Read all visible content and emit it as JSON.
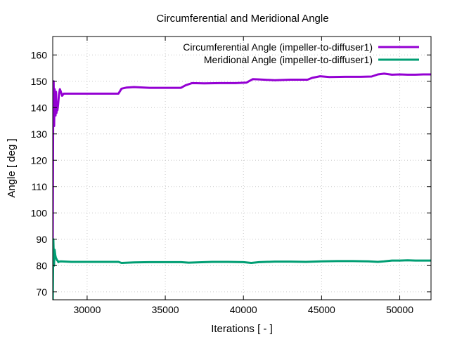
{
  "chart_data": {
    "type": "line",
    "title": "Circumferential and Meridional Angle",
    "xlabel": "Iterations [ - ]",
    "ylabel": "Angle [ deg ]",
    "xlim": [
      27800,
      52000
    ],
    "ylim": [
      67,
      167
    ],
    "xticks": [
      30000,
      35000,
      40000,
      45000,
      50000
    ],
    "yticks": [
      70,
      80,
      90,
      100,
      110,
      120,
      130,
      140,
      150,
      160
    ],
    "grid": true,
    "legend_position": "top-right",
    "series": [
      {
        "name": "Circumferential Angle (impeller-to-diffuser1)",
        "color": "#9400d3",
        "points": [
          [
            27800,
            90
          ],
          [
            27830,
            140
          ],
          [
            27860,
            150
          ],
          [
            27890,
            133
          ],
          [
            27920,
            147
          ],
          [
            27950,
            142
          ],
          [
            27980,
            137
          ],
          [
            28010,
            146
          ],
          [
            28040,
            138
          ],
          [
            28070,
            140
          ],
          [
            28100,
            139
          ],
          [
            28140,
            141
          ],
          [
            28200,
            145
          ],
          [
            28260,
            147
          ],
          [
            28320,
            146
          ],
          [
            28400,
            144.5
          ],
          [
            28500,
            145.3
          ],
          [
            28700,
            145.3
          ],
          [
            29000,
            145.3
          ],
          [
            30000,
            145.3
          ],
          [
            31000,
            145.3
          ],
          [
            32000,
            145.3
          ],
          [
            32200,
            147.2
          ],
          [
            32500,
            147.6
          ],
          [
            33000,
            147.8
          ],
          [
            34000,
            147.5
          ],
          [
            35000,
            147.5
          ],
          [
            36000,
            147.5
          ],
          [
            36300,
            148.5
          ],
          [
            36700,
            149.3
          ],
          [
            37500,
            149.2
          ],
          [
            38500,
            149.3
          ],
          [
            39500,
            149.3
          ],
          [
            40200,
            149.5
          ],
          [
            40600,
            150.8
          ],
          [
            41000,
            150.7
          ],
          [
            42000,
            150.4
          ],
          [
            43000,
            150.6
          ],
          [
            44100,
            150.6
          ],
          [
            44400,
            151.3
          ],
          [
            44900,
            151.9
          ],
          [
            45500,
            151.6
          ],
          [
            46500,
            151.7
          ],
          [
            47500,
            151.7
          ],
          [
            48200,
            151.8
          ],
          [
            48600,
            152.6
          ],
          [
            49000,
            152.9
          ],
          [
            49500,
            152.5
          ],
          [
            50000,
            152.6
          ],
          [
            50500,
            152.5
          ],
          [
            51000,
            152.5
          ],
          [
            51500,
            152.6
          ],
          [
            52000,
            152.6
          ]
        ]
      },
      {
        "name": "Meridional Angle (impeller-to-diffuser1)",
        "color": "#009e73",
        "points": [
          [
            27800,
            65
          ],
          [
            27840,
            90
          ],
          [
            27880,
            80
          ],
          [
            27920,
            86
          ],
          [
            27960,
            84
          ],
          [
            28000,
            83
          ],
          [
            28040,
            82.5
          ],
          [
            28080,
            82
          ],
          [
            28120,
            81.8
          ],
          [
            28160,
            81.3
          ],
          [
            28200,
            81.5
          ],
          [
            28300,
            81.6
          ],
          [
            29000,
            81.4
          ],
          [
            30000,
            81.4
          ],
          [
            31000,
            81.4
          ],
          [
            32000,
            81.4
          ],
          [
            32200,
            81.0
          ],
          [
            33000,
            81.2
          ],
          [
            34000,
            81.3
          ],
          [
            35000,
            81.3
          ],
          [
            36000,
            81.3
          ],
          [
            36500,
            81.1
          ],
          [
            37000,
            81.2
          ],
          [
            38000,
            81.4
          ],
          [
            39000,
            81.4
          ],
          [
            40000,
            81.3
          ],
          [
            40500,
            81.0
          ],
          [
            41000,
            81.3
          ],
          [
            42000,
            81.5
          ],
          [
            43000,
            81.5
          ],
          [
            44000,
            81.4
          ],
          [
            45000,
            81.6
          ],
          [
            46000,
            81.7
          ],
          [
            47000,
            81.7
          ],
          [
            48000,
            81.6
          ],
          [
            48600,
            81.4
          ],
          [
            49000,
            81.6
          ],
          [
            49500,
            81.9
          ],
          [
            50000,
            81.9
          ],
          [
            50500,
            82.0
          ],
          [
            51000,
            81.9
          ],
          [
            51500,
            81.9
          ],
          [
            52000,
            81.9
          ]
        ]
      }
    ]
  }
}
